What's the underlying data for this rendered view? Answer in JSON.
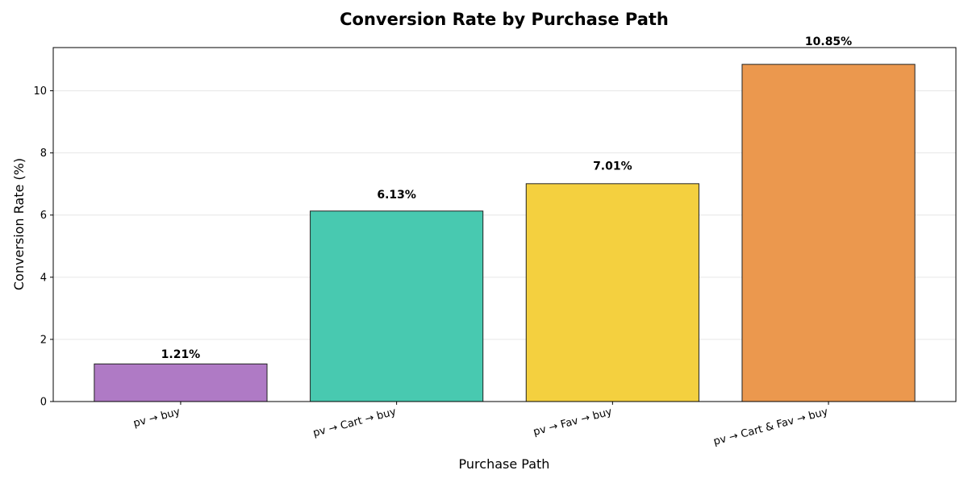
{
  "chart_data": {
    "type": "bar",
    "title": "Conversion Rate by Purchase Path",
    "xlabel": "Purchase Path",
    "ylabel": "Conversion Rate (%)",
    "categories": [
      "pv → buy",
      "pv → Cart → buy",
      "pv → Fav → buy",
      "pv → Cart & Fav → buy"
    ],
    "values": [
      1.21,
      6.13,
      7.01,
      10.85
    ],
    "value_labels": [
      "1.21%",
      "6.13%",
      "7.01%",
      "10.85%"
    ],
    "colors": [
      "#af7ac5",
      "#48c9b0",
      "#f4d03f",
      "#eb984e"
    ],
    "ylim": [
      0,
      11.39
    ],
    "yticks": [
      0,
      2,
      4,
      6,
      8,
      10
    ],
    "grid": "y",
    "legend": "none"
  }
}
